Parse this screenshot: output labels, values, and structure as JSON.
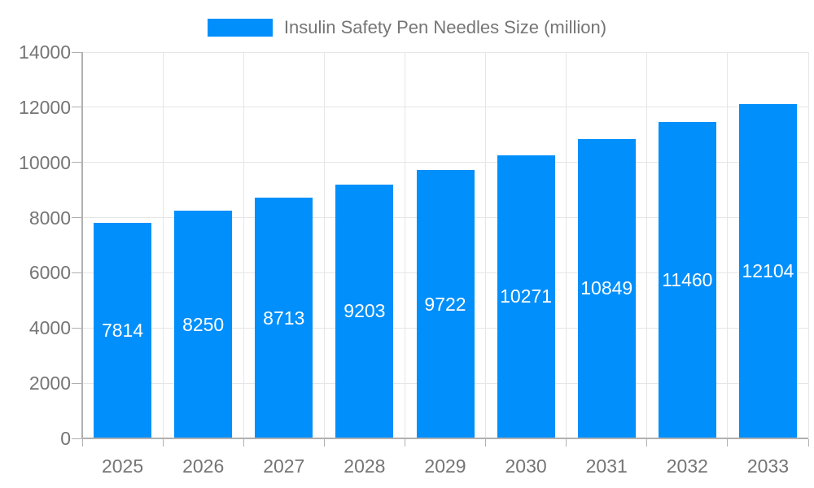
{
  "legend": {
    "label": "Insulin Safety Pen Needles Size (million)",
    "swatch_color": "#008FFB"
  },
  "chart_data": {
    "type": "bar",
    "title": "Insulin Safety Pen Needles Size (million)",
    "series": [
      {
        "name": "Insulin Safety Pen Needles Size (million)",
        "values": [
          7814,
          8250,
          8713,
          9203,
          9722,
          10271,
          10849,
          11460,
          12104
        ]
      }
    ],
    "categories": [
      "2025",
      "2026",
      "2027",
      "2028",
      "2029",
      "2030",
      "2031",
      "2032",
      "2033"
    ],
    "data_labels": [
      7814,
      8250,
      8713,
      9203,
      9722,
      10271,
      10849,
      11460,
      12104
    ],
    "xlabel": "",
    "ylabel": "",
    "ylim": [
      0,
      14000
    ],
    "yticks": [
      0,
      2000,
      4000,
      6000,
      8000,
      10000,
      12000,
      14000
    ],
    "grid": true,
    "legend_position": "top",
    "colors": {
      "bar": "#008FFB",
      "data_label": "#ffffff",
      "axis_label": "#757575",
      "gridline": "#e6e6e6",
      "axis_line": "#b0b0b0",
      "background": "#ffffff"
    }
  }
}
